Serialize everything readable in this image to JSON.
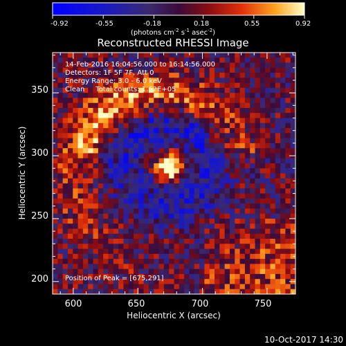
{
  "chart_data": {
    "type": "heatmap",
    "title": "Reconstructed RHESSI Image",
    "xlabel": "Heliocentric X (arcsec)",
    "ylabel": "Heliocentric Y (arcsec)",
    "xlim": [
      584,
      772
    ],
    "ylim": [
      190,
      382
    ],
    "x_ticks": [
      "600",
      "650",
      "700",
      "750"
    ],
    "y_ticks": [
      "200",
      "250",
      "300",
      "350"
    ],
    "colorbar": {
      "label_parts": [
        "(photons cm",
        "-2",
        " s",
        "-1",
        " asec",
        "-2",
        ")"
      ],
      "ticks": [
        "-0.92",
        "-0.55",
        "-0.18",
        "0.18",
        "0.55",
        "0.92"
      ],
      "range": [
        -0.92,
        0.92
      ],
      "colormap": "rhessi-blue-purple-red-yellow-white"
    },
    "peak": [
      675,
      291
    ],
    "info_lines": [
      "14-Feb-2016 16:04:56.000 to 16:14:56.000",
      "Detectors: 1F 5F 7F, Att 0",
      "Energy Range: 3.0 - 6.0 keV",
      "Clean     Total counts: 1.62E+05"
    ],
    "peak_label": "Position of Peak = [675,291]",
    "grid": false
  },
  "footer": {
    "timestamp": "10-Oct-2017 14:30"
  }
}
